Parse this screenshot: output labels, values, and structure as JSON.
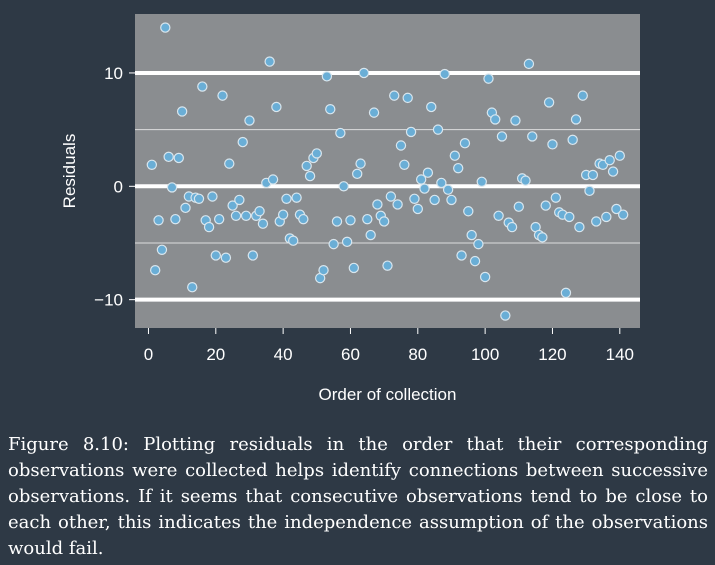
{
  "chart_data": {
    "type": "scatter",
    "title": "",
    "xlabel": "Order of collection",
    "ylabel": "Residuals",
    "xlim": [
      -4,
      146
    ],
    "ylim": [
      -12.5,
      15.2
    ],
    "x_ticks": [
      0,
      20,
      40,
      60,
      80,
      100,
      120,
      140
    ],
    "y_ticks": [
      -10,
      0,
      10
    ],
    "y_tick_labels": [
      "−10",
      "0",
      "10"
    ],
    "bold_gridlines": [
      -10,
      0,
      10
    ],
    "minor_gridlines": [
      -5,
      5
    ],
    "grid": true,
    "colors": {
      "plot_background": "#8a8d90",
      "point_fill": "#6aaed6",
      "point_stroke": "#d9e6ee",
      "page_background": "#2e3945"
    },
    "series": [
      {
        "x": [
          1,
          2,
          3,
          4,
          5,
          6,
          7,
          8,
          9,
          10,
          11,
          12,
          13,
          14,
          15,
          16,
          17,
          18,
          19,
          20,
          21,
          22,
          23,
          24,
          25,
          26,
          27,
          28,
          29,
          30,
          31,
          32,
          33,
          34,
          35,
          36,
          37,
          38,
          39,
          40,
          41,
          42,
          43,
          44,
          45,
          46,
          47,
          48,
          49,
          50,
          51,
          52,
          53,
          54,
          55,
          56,
          57,
          58,
          59,
          60,
          61,
          62,
          63,
          64,
          65,
          66,
          67,
          68,
          69,
          70,
          71,
          72,
          73,
          74,
          75,
          76,
          77,
          78,
          79,
          80,
          81,
          82,
          83,
          84,
          85,
          86,
          87,
          88,
          89,
          90,
          91,
          92,
          93,
          94,
          95,
          96,
          97,
          98,
          99,
          100,
          101,
          102,
          103,
          104,
          105,
          106,
          107,
          108,
          109,
          110,
          111,
          112,
          113,
          114,
          115,
          116,
          117,
          118,
          119,
          120,
          121,
          122,
          123,
          124,
          125,
          126,
          127,
          128,
          129,
          130,
          131,
          132,
          133,
          134,
          135,
          136,
          137,
          138,
          139,
          140,
          141
        ],
        "y": [
          1.9,
          -7.4,
          -3.0,
          -5.6,
          14.0,
          2.6,
          -0.1,
          -2.9,
          2.5,
          6.6,
          -1.9,
          -0.9,
          -8.9,
          -1.0,
          -1.1,
          8.8,
          -3.0,
          -3.6,
          -0.9,
          -6.1,
          -2.9,
          8.0,
          -6.3,
          2.0,
          -1.7,
          -2.6,
          -1.2,
          3.9,
          -2.6,
          5.8,
          -6.1,
          -2.6,
          -2.2,
          -3.3,
          0.3,
          11.0,
          0.6,
          7.0,
          -3.1,
          -2.5,
          -1.1,
          -4.6,
          -4.8,
          -1.0,
          -2.5,
          -2.9,
          1.8,
          0.9,
          2.5,
          2.9,
          -8.1,
          -7.4,
          9.7,
          6.8,
          -5.1,
          -3.1,
          4.7,
          0.0,
          -4.9,
          -3.0,
          -7.2,
          1.1,
          2.0,
          10.0,
          -2.9,
          -4.3,
          6.5,
          -1.6,
          -2.6,
          -3.1,
          -7.0,
          -0.9,
          8.0,
          -1.6,
          3.6,
          1.9,
          7.8,
          4.8,
          -1.1,
          -2.0,
          0.6,
          -0.2,
          1.2,
          7.0,
          -1.2,
          5.0,
          0.3,
          9.9,
          -0.3,
          -1.2,
          2.7,
          1.6,
          -6.1,
          3.8,
          -2.2,
          -4.3,
          -6.6,
          -5.1,
          0.4,
          -8.0,
          9.5,
          6.5,
          5.9,
          -2.6,
          4.4,
          -11.4,
          -3.2,
          -3.6,
          5.8,
          -1.8,
          0.7,
          0.5,
          10.8,
          4.4,
          -3.6,
          -4.3,
          -4.5,
          -1.7,
          7.4,
          3.7,
          -1.0,
          -2.3,
          -2.5,
          -9.4,
          -2.7,
          4.1,
          5.9,
          -3.6,
          8.0,
          1.0,
          -0.4,
          1.0,
          -3.1,
          2.0,
          1.9,
          -2.7,
          2.3,
          1.3,
          -2.0,
          2.7,
          -2.5
        ]
      }
    ]
  },
  "caption": "Figure 8.10: Plotting residuals in the order that their corresponding observations were collected helps identify connections between successive observations. If it seems that consecutive observations tend to be close to each other, this indicates the independence assumption of the observations would fail."
}
